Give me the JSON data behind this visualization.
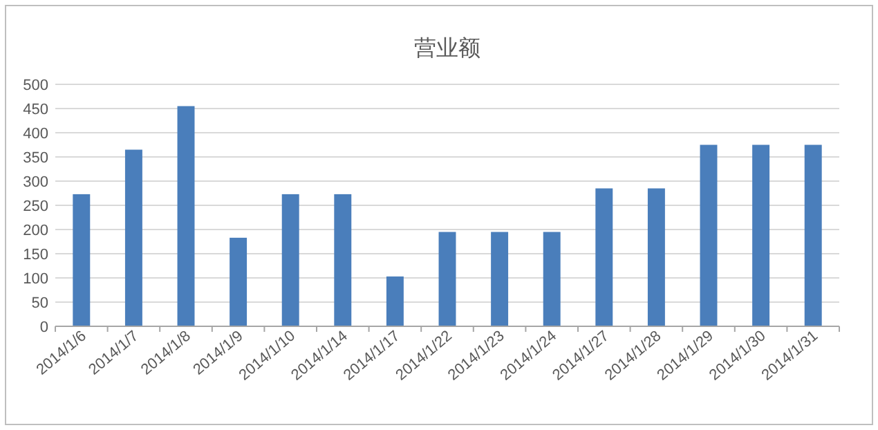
{
  "chart_data": {
    "type": "bar",
    "title": "营业额",
    "categories": [
      "2014/1/6",
      "2014/1/7",
      "2014/1/8",
      "2014/1/9",
      "2014/1/10",
      "2014/1/14",
      "2014/1/17",
      "2014/1/22",
      "2014/1/23",
      "2014/1/24",
      "2014/1/27",
      "2014/1/28",
      "2014/1/29",
      "2014/1/30",
      "2014/1/31"
    ],
    "values": [
      273,
      365,
      455,
      183,
      273,
      273,
      103,
      195,
      195,
      195,
      285,
      285,
      375,
      375,
      375
    ],
    "color": "#4a7ebb",
    "ylim": [
      0,
      500
    ],
    "yticks": [
      0,
      50,
      100,
      150,
      200,
      250,
      300,
      350,
      400,
      450,
      500
    ],
    "grid": "y"
  }
}
